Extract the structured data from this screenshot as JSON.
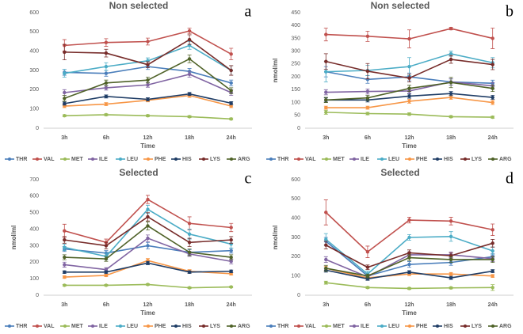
{
  "chart_data": [
    {
      "type": "line",
      "title": "Non selected",
      "panel_label": "a",
      "x_label": "Time",
      "categories": [
        "3h",
        "6h",
        "12h",
        "18h",
        "24h"
      ],
      "ylim": [
        0,
        600
      ],
      "yticks": [
        0,
        100,
        200,
        300,
        400,
        500,
        600
      ],
      "series": [
        {
          "name": "THR",
          "color": "#4a7ebb",
          "values": [
            290,
            285,
            320,
            295,
            235
          ],
          "errors": [
            15,
            15,
            15,
            15,
            15
          ]
        },
        {
          "name": "VAL",
          "color": "#c0504d",
          "values": [
            430,
            445,
            450,
            505,
            385
          ],
          "errors": [
            30,
            20,
            18,
            15,
            30
          ]
        },
        {
          "name": "MET",
          "color": "#9bbb59",
          "values": [
            65,
            70,
            65,
            60,
            48
          ],
          "errors": [
            5,
            5,
            5,
            5,
            5
          ]
        },
        {
          "name": "ILE",
          "color": "#8064a2",
          "values": [
            185,
            210,
            225,
            280,
            185
          ],
          "errors": [
            15,
            12,
            12,
            15,
            15
          ]
        },
        {
          "name": "LEU",
          "color": "#4bacc6",
          "values": [
            285,
            320,
            350,
            430,
            300
          ],
          "errors": [
            20,
            20,
            15,
            20,
            25
          ]
        },
        {
          "name": "PHE",
          "color": "#f79646",
          "values": [
            115,
            125,
            145,
            170,
            115
          ],
          "errors": [
            8,
            8,
            8,
            10,
            8
          ]
        },
        {
          "name": "HIS",
          "color": "#1f3d66",
          "values": [
            128,
            165,
            150,
            178,
            130
          ],
          "errors": [
            8,
            8,
            8,
            8,
            8
          ]
        },
        {
          "name": "LYS",
          "color": "#772c2a",
          "values": [
            395,
            390,
            330,
            460,
            300
          ],
          "errors": [
            40,
            20,
            15,
            25,
            25
          ]
        },
        {
          "name": "ARG",
          "color": "#4f6228",
          "values": [
            155,
            235,
            250,
            360,
            195
          ],
          "errors": [
            15,
            15,
            15,
            20,
            15
          ]
        }
      ]
    },
    {
      "type": "line",
      "title": "Non selected",
      "panel_label": "b",
      "x_label": "Time",
      "y_label": "nmol/ml",
      "categories": [
        "3h",
        "6h",
        "12h",
        "18h",
        "24h"
      ],
      "ylim": [
        0,
        450
      ],
      "yticks": [
        0,
        50,
        100,
        150,
        200,
        250,
        300,
        350,
        400,
        450
      ],
      "series": [
        {
          "name": "THR",
          "color": "#4a7ebb",
          "values": [
            220,
            190,
            200,
            180,
            175
          ],
          "errors": [
            20,
            15,
            15,
            12,
            12
          ]
        },
        {
          "name": "VAL",
          "color": "#c0504d",
          "values": [
            365,
            358,
            348,
            388,
            350
          ],
          "errors": [
            25,
            20,
            35,
            5,
            40
          ]
        },
        {
          "name": "MET",
          "color": "#9bbb59",
          "values": [
            62,
            57,
            55,
            45,
            43
          ],
          "errors": [
            8,
            5,
            5,
            4,
            4
          ]
        },
        {
          "name": "ILE",
          "color": "#8064a2",
          "values": [
            140,
            143,
            145,
            180,
            165
          ],
          "errors": [
            10,
            10,
            10,
            12,
            12
          ]
        },
        {
          "name": "LEU",
          "color": "#4bacc6",
          "values": [
            220,
            225,
            240,
            290,
            255
          ],
          "errors": [
            40,
            20,
            35,
            10,
            20
          ]
        },
        {
          "name": "PHE",
          "color": "#f79646",
          "values": [
            80,
            80,
            105,
            120,
            100
          ],
          "errors": [
            6,
            6,
            8,
            8,
            8
          ]
        },
        {
          "name": "HIS",
          "color": "#1f3d66",
          "values": [
            110,
            110,
            125,
            135,
            120
          ],
          "errors": [
            8,
            8,
            8,
            8,
            8
          ]
        },
        {
          "name": "LYS",
          "color": "#772c2a",
          "values": [
            260,
            222,
            195,
            268,
            248
          ],
          "errors": [
            30,
            30,
            15,
            15,
            20
          ]
        },
        {
          "name": "ARG",
          "color": "#4f6228",
          "values": [
            110,
            118,
            155,
            178,
            155
          ],
          "errors": [
            10,
            10,
            12,
            20,
            12
          ]
        }
      ]
    },
    {
      "type": "line",
      "title": "Selected",
      "panel_label": "c",
      "x_label": "Time",
      "y_label": "nmol/ml",
      "categories": [
        "3h",
        "6h",
        "12h",
        "18h",
        "24h"
      ],
      "ylim": [
        0,
        700
      ],
      "yticks": [
        0,
        100,
        200,
        300,
        400,
        500,
        600,
        700
      ],
      "series": [
        {
          "name": "THR",
          "color": "#4a7ebb",
          "values": [
            280,
            255,
            300,
            260,
            270
          ],
          "errors": [
            15,
            15,
            20,
            15,
            15
          ]
        },
        {
          "name": "VAL",
          "color": "#c0504d",
          "values": [
            390,
            320,
            580,
            435,
            410
          ],
          "errors": [
            40,
            20,
            25,
            40,
            25
          ]
        },
        {
          "name": "MET",
          "color": "#9bbb59",
          "values": [
            60,
            60,
            65,
            45,
            50
          ],
          "errors": [
            5,
            5,
            5,
            5,
            5
          ]
        },
        {
          "name": "ILE",
          "color": "#8064a2",
          "values": [
            185,
            155,
            345,
            250,
            205
          ],
          "errors": [
            15,
            12,
            20,
            15,
            15
          ]
        },
        {
          "name": "LEU",
          "color": "#4bacc6",
          "values": [
            290,
            235,
            520,
            370,
            310
          ],
          "errors": [
            20,
            20,
            25,
            30,
            25
          ]
        },
        {
          "name": "PHE",
          "color": "#f79646",
          "values": [
            110,
            120,
            210,
            145,
            130
          ],
          "errors": [
            8,
            8,
            12,
            10,
            8
          ]
        },
        {
          "name": "HIS",
          "color": "#1f3d66",
          "values": [
            140,
            140,
            195,
            140,
            145
          ],
          "errors": [
            8,
            8,
            10,
            8,
            8
          ]
        },
        {
          "name": "LYS",
          "color": "#772c2a",
          "values": [
            335,
            300,
            475,
            320,
            335
          ],
          "errors": [
            20,
            20,
            25,
            25,
            20
          ]
        },
        {
          "name": "ARG",
          "color": "#4f6228",
          "values": [
            230,
            220,
            420,
            260,
            230
          ],
          "errors": [
            15,
            15,
            25,
            20,
            15
          ]
        }
      ]
    },
    {
      "type": "line",
      "title": "Selected",
      "panel_label": "d",
      "x_label": "Time",
      "y_label": "nmol/ml",
      "categories": [
        "3h",
        "6h",
        "12h",
        "18h",
        "24h"
      ],
      "ylim": [
        0,
        600
      ],
      "yticks": [
        0,
        100,
        200,
        300,
        400,
        500,
        600
      ],
      "series": [
        {
          "name": "THR",
          "color": "#4a7ebb",
          "values": [
            280,
            100,
            160,
            170,
            200
          ],
          "errors": [
            20,
            10,
            15,
            15,
            15
          ]
        },
        {
          "name": "VAL",
          "color": "#c0504d",
          "values": [
            430,
            225,
            390,
            385,
            340
          ],
          "errors": [
            65,
            30,
            15,
            20,
            30
          ]
        },
        {
          "name": "MET",
          "color": "#9bbb59",
          "values": [
            65,
            40,
            35,
            38,
            40
          ],
          "errors": [
            8,
            5,
            5,
            5,
            15
          ]
        },
        {
          "name": "ILE",
          "color": "#8064a2",
          "values": [
            185,
            95,
            210,
            210,
            190
          ],
          "errors": [
            15,
            10,
            15,
            15,
            15
          ]
        },
        {
          "name": "LEU",
          "color": "#4bacc6",
          "values": [
            290,
            110,
            300,
            305,
            230
          ],
          "errors": [
            30,
            15,
            15,
            25,
            20
          ]
        },
        {
          "name": "PHE",
          "color": "#f79646",
          "values": [
            140,
            90,
            110,
            110,
            100
          ],
          "errors": [
            10,
            8,
            8,
            8,
            8
          ]
        },
        {
          "name": "HIS",
          "color": "#1f3d66",
          "values": [
            130,
            85,
            120,
            90,
            125
          ],
          "errors": [
            10,
            8,
            8,
            8,
            8
          ]
        },
        {
          "name": "LYS",
          "color": "#772c2a",
          "values": [
            260,
            145,
            220,
            205,
            270
          ],
          "errors": [
            20,
            12,
            15,
            15,
            20
          ]
        },
        {
          "name": "ARG",
          "color": "#4f6228",
          "values": [
            140,
            100,
            195,
            185,
            185
          ],
          "errors": [
            15,
            10,
            15,
            15,
            15
          ]
        }
      ]
    }
  ]
}
